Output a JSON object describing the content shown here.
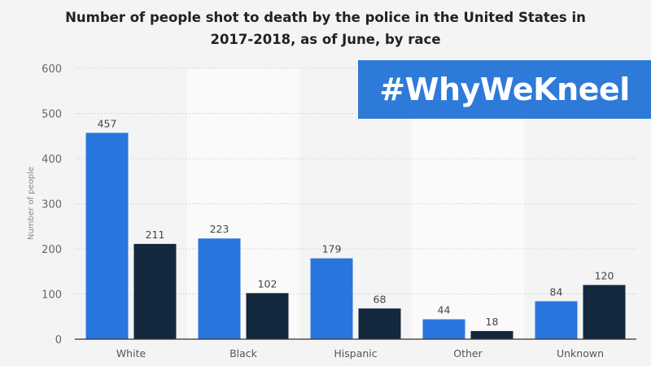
{
  "banner": {
    "text": "#WhyWeKneel",
    "color": "#2e7ad9"
  },
  "chart_data": {
    "type": "bar",
    "title": "Number of people shot to death by the police in the United States in 2017-2018, as of June, by race",
    "title_lines": [
      "Number of people shot to death by the police in the United States in",
      "2017-2018, as of June, by race"
    ],
    "xlabel": "",
    "ylabel": "Number of people",
    "ylim": [
      0,
      600
    ],
    "yticks": [
      0,
      100,
      200,
      300,
      400,
      500,
      600
    ],
    "grid": true,
    "categories": [
      "White",
      "Black",
      "Hispanic",
      "Other",
      "Unknown"
    ],
    "series": [
      {
        "values": [
          457,
          223,
          179,
          44,
          84
        ],
        "color": "#2876dd"
      },
      {
        "values": [
          211,
          102,
          68,
          18,
          120
        ],
        "color": "#13273d"
      }
    ]
  }
}
